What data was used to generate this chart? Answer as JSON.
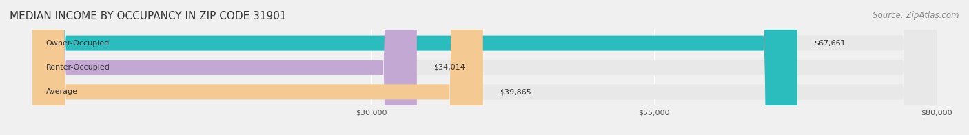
{
  "title": "MEDIAN INCOME BY OCCUPANCY IN ZIP CODE 31901",
  "source": "Source: ZipAtlas.com",
  "categories": [
    "Owner-Occupied",
    "Renter-Occupied",
    "Average"
  ],
  "values": [
    67661,
    34014,
    39865
  ],
  "labels": [
    "$67,661",
    "$34,014",
    "$39,865"
  ],
  "bar_colors": [
    "#2bbcbe",
    "#c4a8d4",
    "#f5c992"
  ],
  "bar_edge_colors": [
    "#2bbcbe",
    "#c4a8d4",
    "#f5c992"
  ],
  "xlim": [
    0,
    80000
  ],
  "xticks": [
    30000,
    55000,
    80000
  ],
  "xticklabels": [
    "$30,000",
    "$55,000",
    "$80,000"
  ],
  "background_color": "#f0f0f0",
  "bar_bg_color": "#e8e8e8",
  "title_fontsize": 11,
  "source_fontsize": 8.5,
  "label_fontsize": 8,
  "tick_fontsize": 8,
  "cat_fontsize": 8
}
